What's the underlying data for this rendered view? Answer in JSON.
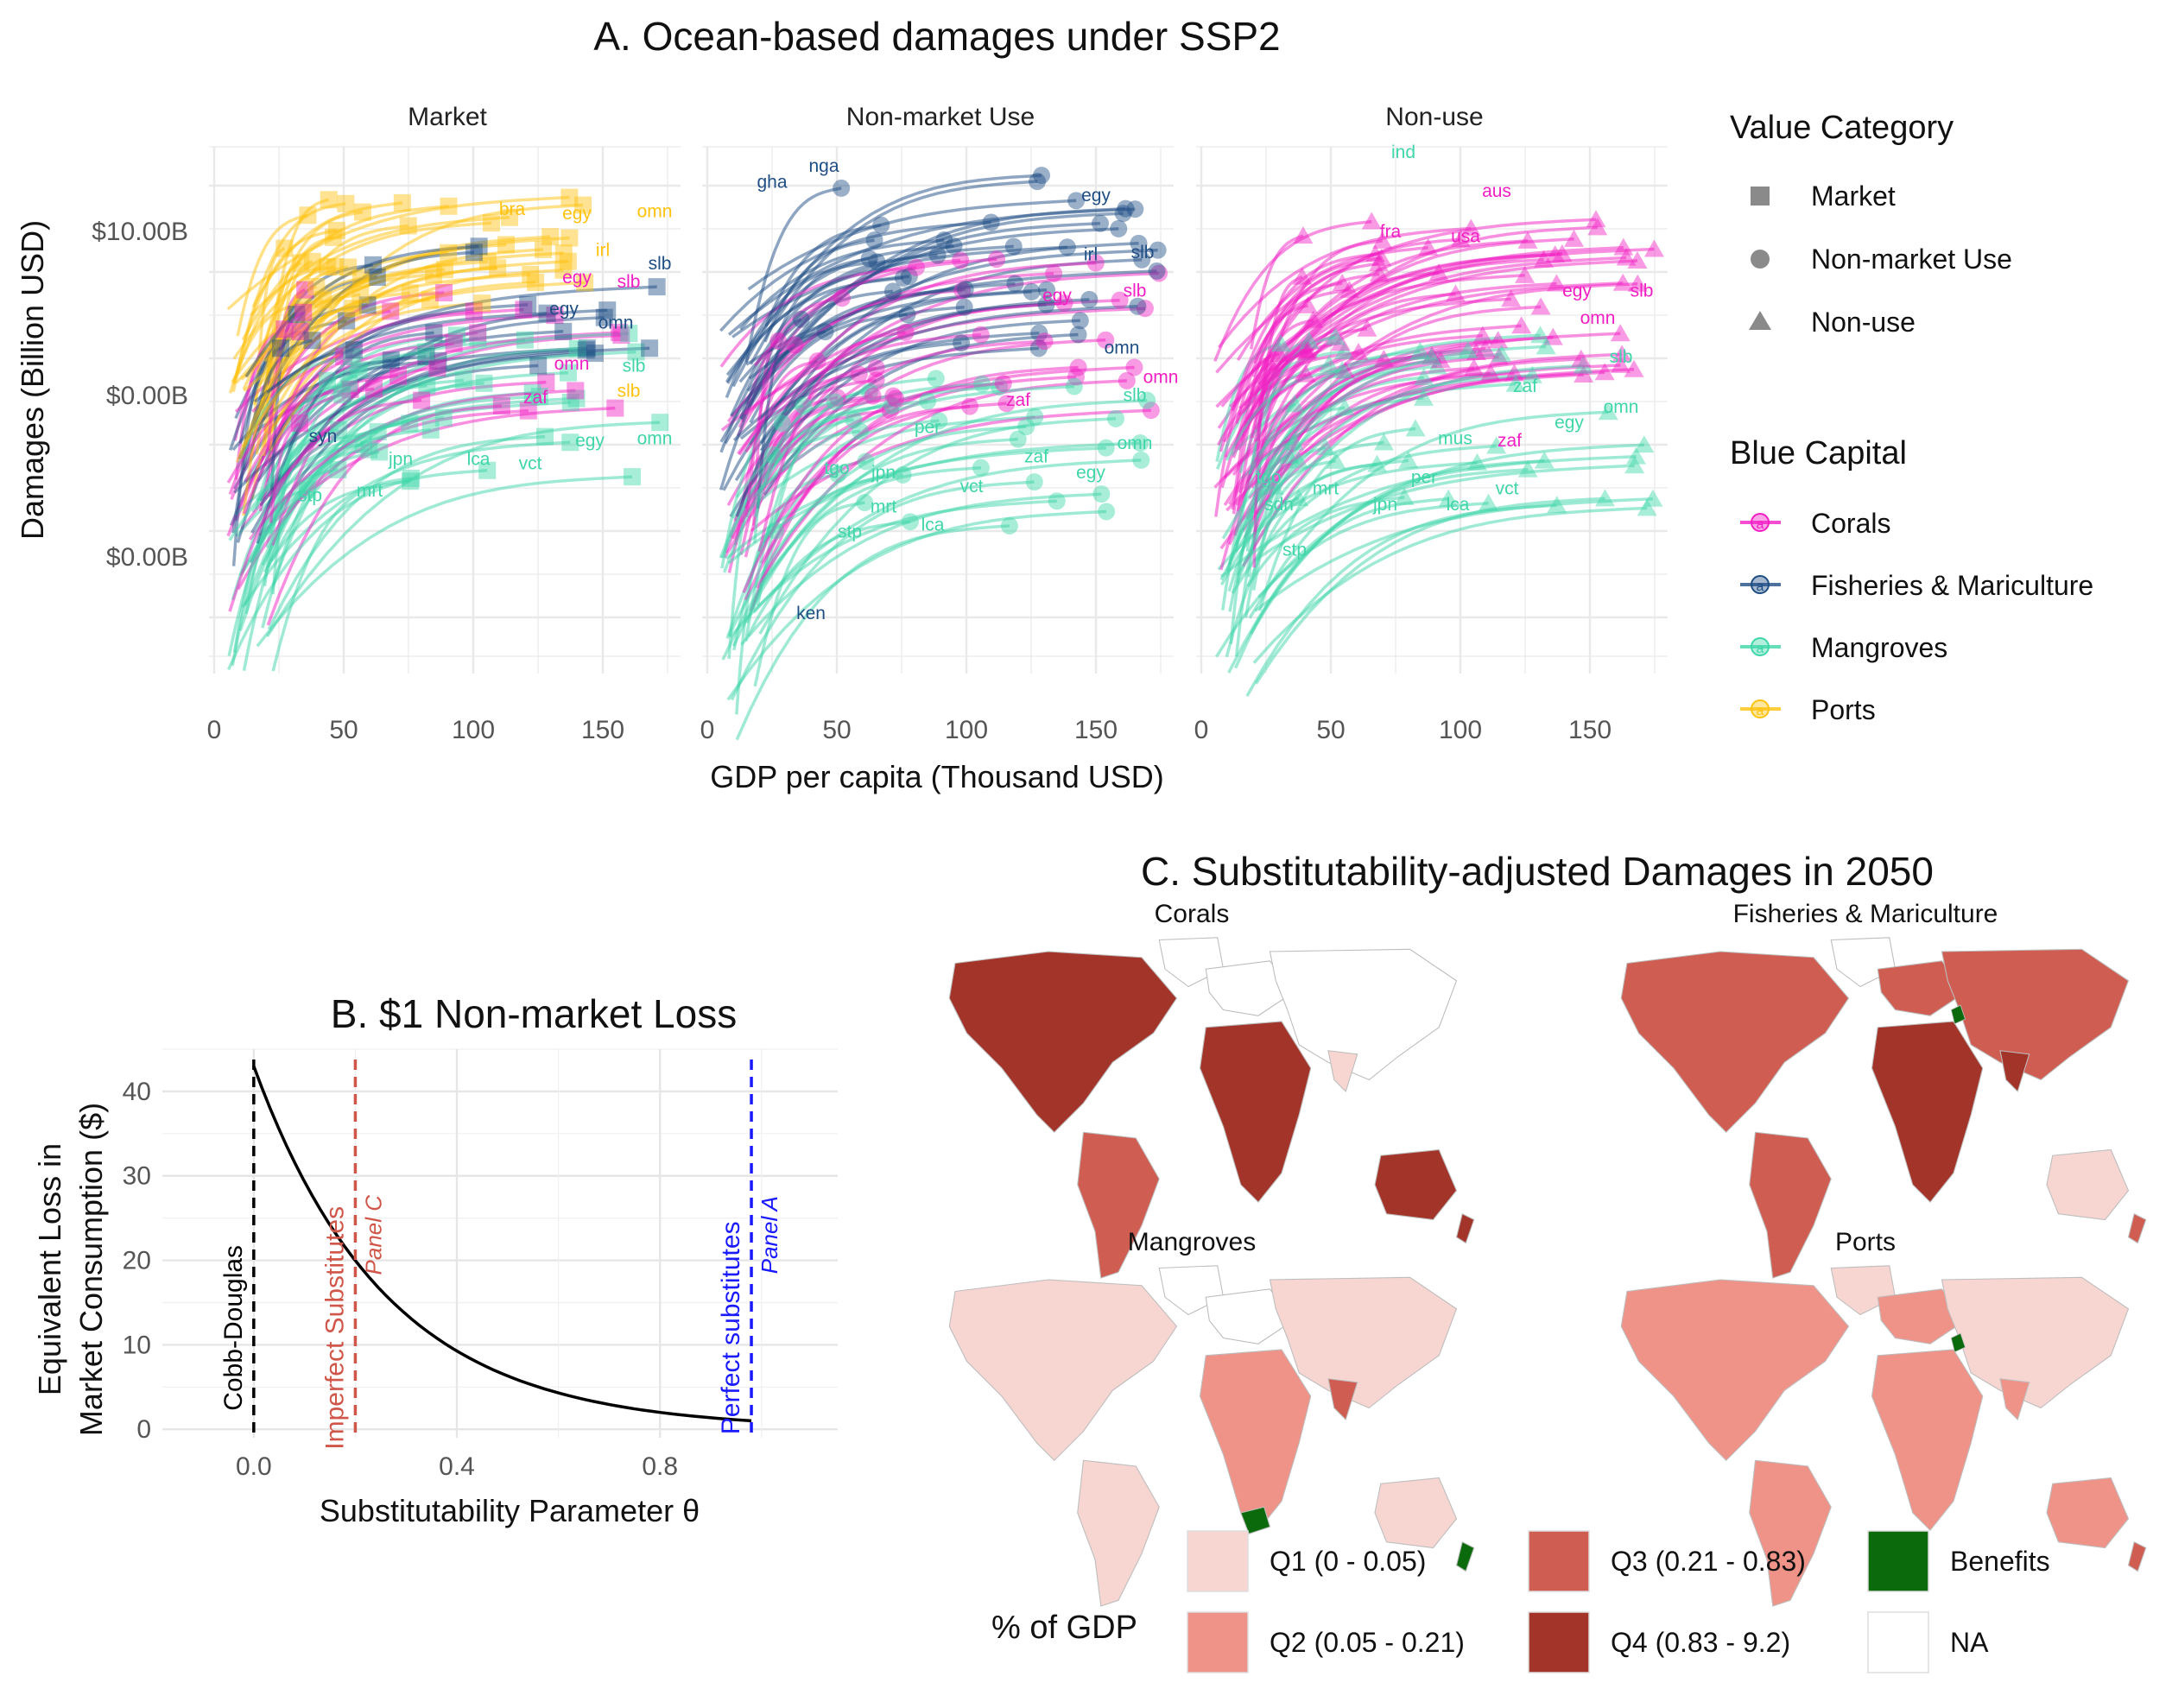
{
  "panel_a": {
    "title": "A. Ocean-based damages under SSP2",
    "facets": [
      "Market",
      "Non-market Use",
      "Non-use"
    ],
    "ylabel": "Damages (Billion USD)",
    "xlabel": "GDP per capita (Thousand USD)",
    "yticks": [
      "$10.00B",
      "$0.00B",
      "$0.00B"
    ],
    "xticks": [
      "0",
      "50",
      "100",
      "150"
    ],
    "legend_value": {
      "title": "Value Category",
      "items": [
        {
          "label": "Market",
          "shape": "square"
        },
        {
          "label": "Non-market Use",
          "shape": "circle"
        },
        {
          "label": "Non-use",
          "shape": "triangle"
        }
      ]
    },
    "legend_capital": {
      "title": "Blue Capital",
      "items": [
        {
          "label": "Corals",
          "color": "#f21fc4"
        },
        {
          "label": "Fisheries & Mariculture",
          "color": "#1f4e85"
        },
        {
          "label": "Mangroves",
          "color": "#3fd6a9"
        },
        {
          "label": "Ports",
          "color": "#ffc20e"
        }
      ]
    },
    "country_labels": [
      {
        "facet": 0,
        "text": "bra",
        "cap": 3,
        "x": 115,
        "y": 11.0
      },
      {
        "facet": 0,
        "text": "egy",
        "cap": 3,
        "x": 140,
        "y": 10.8
      },
      {
        "facet": 0,
        "text": "omn",
        "cap": 3,
        "x": 170,
        "y": 10.9
      },
      {
        "facet": 0,
        "text": "irl",
        "cap": 3,
        "x": 150,
        "y": 9.2
      },
      {
        "facet": 0,
        "text": "slb",
        "cap": 1,
        "x": 172,
        "y": 8.6
      },
      {
        "facet": 0,
        "text": "egy",
        "cap": 0,
        "x": 140,
        "y": 8.0
      },
      {
        "facet": 0,
        "text": "slb",
        "cap": 0,
        "x": 160,
        "y": 7.8
      },
      {
        "facet": 0,
        "text": "egy",
        "cap": 1,
        "x": 135,
        "y": 6.6
      },
      {
        "facet": 0,
        "text": "omn",
        "cap": 1,
        "x": 155,
        "y": 6.0
      },
      {
        "facet": 0,
        "text": "omn",
        "cap": 0,
        "x": 138,
        "y": 4.2
      },
      {
        "facet": 0,
        "text": "slb",
        "cap": 2,
        "x": 162,
        "y": 4.1
      },
      {
        "facet": 0,
        "text": "zaf",
        "cap": 0,
        "x": 124,
        "y": 2.7
      },
      {
        "facet": 0,
        "text": "slb",
        "cap": 3,
        "x": 160,
        "y": 3.0
      },
      {
        "facet": 0,
        "text": "egy",
        "cap": 2,
        "x": 145,
        "y": 0.8
      },
      {
        "facet": 0,
        "text": "omn",
        "cap": 2,
        "x": 170,
        "y": 0.9
      },
      {
        "facet": 0,
        "text": "syn",
        "cap": 1,
        "x": 42,
        "y": 1.0
      },
      {
        "facet": 0,
        "text": "jpn",
        "cap": 2,
        "x": 72,
        "y": 0.0
      },
      {
        "facet": 0,
        "text": "lca",
        "cap": 2,
        "x": 102,
        "y": 0.0
      },
      {
        "facet": 0,
        "text": "vct",
        "cap": 2,
        "x": 122,
        "y": -0.2
      },
      {
        "facet": 0,
        "text": "stp",
        "cap": 2,
        "x": 37,
        "y": -1.6
      },
      {
        "facet": 0,
        "text": "mrt",
        "cap": 2,
        "x": 60,
        "y": -1.4
      },
      {
        "facet": 1,
        "text": "nga",
        "cap": 1,
        "x": 45,
        "y": 12.9
      },
      {
        "facet": 1,
        "text": "gha",
        "cap": 1,
        "x": 25,
        "y": 12.2
      },
      {
        "facet": 1,
        "text": "egy",
        "cap": 1,
        "x": 150,
        "y": 11.6
      },
      {
        "facet": 1,
        "text": "irl",
        "cap": 1,
        "x": 148,
        "y": 9.0
      },
      {
        "facet": 1,
        "text": "slb",
        "cap": 1,
        "x": 168,
        "y": 9.1
      },
      {
        "facet": 1,
        "text": "egy",
        "cap": 0,
        "x": 135,
        "y": 7.2
      },
      {
        "facet": 1,
        "text": "slb",
        "cap": 0,
        "x": 165,
        "y": 7.4
      },
      {
        "facet": 1,
        "text": "omn",
        "cap": 1,
        "x": 160,
        "y": 4.9
      },
      {
        "facet": 1,
        "text": "omn",
        "cap": 0,
        "x": 175,
        "y": 3.6
      },
      {
        "facet": 1,
        "text": "zaf",
        "cap": 0,
        "x": 120,
        "y": 2.6
      },
      {
        "facet": 1,
        "text": "slb",
        "cap": 2,
        "x": 165,
        "y": 2.8
      },
      {
        "facet": 1,
        "text": "per",
        "cap": 2,
        "x": 85,
        "y": 1.4
      },
      {
        "facet": 1,
        "text": "omn",
        "cap": 2,
        "x": 165,
        "y": 0.7
      },
      {
        "facet": 1,
        "text": "zaf",
        "cap": 2,
        "x": 127,
        "y": 0.1
      },
      {
        "facet": 1,
        "text": "egy",
        "cap": 2,
        "x": 148,
        "y": -0.6
      },
      {
        "facet": 1,
        "text": "tgo",
        "cap": 2,
        "x": 50,
        "y": -0.4
      },
      {
        "facet": 1,
        "text": "jpn",
        "cap": 2,
        "x": 68,
        "y": -0.6
      },
      {
        "facet": 1,
        "text": "vct",
        "cap": 2,
        "x": 102,
        "y": -1.2
      },
      {
        "facet": 1,
        "text": "mrt",
        "cap": 2,
        "x": 68,
        "y": -2.1
      },
      {
        "facet": 1,
        "text": "lca",
        "cap": 2,
        "x": 87,
        "y": -2.9
      },
      {
        "facet": 1,
        "text": "stp",
        "cap": 2,
        "x": 55,
        "y": -3.2
      },
      {
        "facet": 1,
        "text": "ken",
        "cap": 1,
        "x": 40,
        "y": -6.8
      },
      {
        "facet": 2,
        "text": "ind",
        "cap": 2,
        "x": 78,
        "y": 13.5
      },
      {
        "facet": 2,
        "text": "aus",
        "cap": 0,
        "x": 114,
        "y": 11.8
      },
      {
        "facet": 2,
        "text": "fra",
        "cap": 0,
        "x": 73,
        "y": 10.0
      },
      {
        "facet": 2,
        "text": "usa",
        "cap": 0,
        "x": 102,
        "y": 9.8
      },
      {
        "facet": 2,
        "text": "egy",
        "cap": 0,
        "x": 145,
        "y": 7.4
      },
      {
        "facet": 2,
        "text": "slb",
        "cap": 0,
        "x": 170,
        "y": 7.4
      },
      {
        "facet": 2,
        "text": "omn",
        "cap": 0,
        "x": 153,
        "y": 6.2
      },
      {
        "facet": 2,
        "text": "slb",
        "cap": 2,
        "x": 162,
        "y": 4.5
      },
      {
        "facet": 2,
        "text": "zaf",
        "cap": 2,
        "x": 125,
        "y": 3.2
      },
      {
        "facet": 2,
        "text": "omn",
        "cap": 2,
        "x": 162,
        "y": 2.3
      },
      {
        "facet": 2,
        "text": "egy",
        "cap": 2,
        "x": 142,
        "y": 1.6
      },
      {
        "facet": 2,
        "text": "mus",
        "cap": 2,
        "x": 98,
        "y": 0.9
      },
      {
        "facet": 2,
        "text": "zaf",
        "cap": 0,
        "x": 119,
        "y": 0.8
      },
      {
        "facet": 2,
        "text": "tgo",
        "cap": 2,
        "x": 26,
        "y": -0.8
      },
      {
        "facet": 2,
        "text": "per",
        "cap": 2,
        "x": 86,
        "y": -0.8
      },
      {
        "facet": 2,
        "text": "vct",
        "cap": 2,
        "x": 118,
        "y": -1.3
      },
      {
        "facet": 2,
        "text": "mrt",
        "cap": 2,
        "x": 48,
        "y": -1.3
      },
      {
        "facet": 2,
        "text": "sdn",
        "cap": 2,
        "x": 30,
        "y": -2.0
      },
      {
        "facet": 2,
        "text": "jpn",
        "cap": 2,
        "x": 71,
        "y": -2.0
      },
      {
        "facet": 2,
        "text": "lca",
        "cap": 2,
        "x": 99,
        "y": -2.0
      },
      {
        "facet": 2,
        "text": "stp",
        "cap": 2,
        "x": 36,
        "y": -4.0
      }
    ]
  },
  "panel_b": {
    "title": "B. $1 Non-market Loss",
    "ylabel_line1": "Equivalent Loss in",
    "ylabel_line2": "Market Consumption ($)",
    "xlabel": "Substitutability Parameter θ",
    "xticks": [
      "0.0",
      "0.4",
      "0.8"
    ],
    "yticks": [
      "0",
      "10",
      "20",
      "30",
      "40"
    ],
    "vlines": [
      {
        "x": 0.0,
        "label": "Cobb-Douglas",
        "sublabel": "",
        "color": "#000000"
      },
      {
        "x": 0.2,
        "label": "Imperfect Substitutes",
        "sublabel": "Panel C",
        "color": "#d0564a"
      },
      {
        "x": 0.98,
        "label": "Perfect substitutes",
        "sublabel": "Panel A",
        "color": "#1a1aff"
      }
    ]
  },
  "panel_c": {
    "title": "C. Substitutability-adjusted Damages in 2050",
    "maps": [
      "Corals",
      "Fisheries & Mariculture",
      "Mangroves",
      "Ports"
    ],
    "legend_title": "% of GDP",
    "legend_items": [
      {
        "label": "Q1 (0 - 0.05)",
        "color": "#f7d6d2"
      },
      {
        "label": "Q2 (0.05 - 0.21)",
        "color": "#ef9388"
      },
      {
        "label": "Q3 (0.21 - 0.83)",
        "color": "#cf5d52"
      },
      {
        "label": "Q4 (0.83 - 9.2)",
        "color": "#a3342a"
      },
      {
        "label": "Benefits",
        "color": "#0b6a0b"
      },
      {
        "label": "NA",
        "color": "#ffffff"
      }
    ]
  },
  "chart_data": [
    {
      "type": "scatter",
      "title": "A. Ocean-based damages under SSP2",
      "facets": [
        "Market",
        "Non-market Use",
        "Non-use"
      ],
      "xlabel": "GDP per capita (Thousand USD)",
      "ylabel": "Damages (Billion USD)",
      "xlim": [
        0,
        180
      ],
      "ylim": [
        -9,
        14
      ],
      "series": [
        {
          "name": "Corals",
          "color": "#f21fc4"
        },
        {
          "name": "Fisheries & Mariculture",
          "color": "#1f4e85"
        },
        {
          "name": "Mangroves",
          "color": "#3fd6a9"
        },
        {
          "name": "Ports",
          "color": "#ffc20e"
        }
      ],
      "points": [
        {
          "facet": 0,
          "cap": 3,
          "x": 115,
          "y": 11.0
        },
        {
          "facet": 0,
          "cap": 3,
          "x": 140,
          "y": 10.8
        },
        {
          "facet": 0,
          "cap": 3,
          "x": 170,
          "y": 10.9
        },
        {
          "facet": 0,
          "cap": 1,
          "x": 172,
          "y": 8.6
        },
        {
          "facet": 1,
          "cap": 1,
          "x": 45,
          "y": 12.9
        },
        {
          "facet": 1,
          "cap": 1,
          "x": 150,
          "y": 11.6
        },
        {
          "facet": 1,
          "cap": 1,
          "x": 40,
          "y": -6.8
        },
        {
          "facet": 2,
          "cap": 2,
          "x": 78,
          "y": 13.5
        },
        {
          "facet": 2,
          "cap": 0,
          "x": 114,
          "y": 11.8
        },
        {
          "facet": 2,
          "cap": 2,
          "x": 36,
          "y": -4.0
        }
      ]
    },
    {
      "type": "line",
      "title": "B. $1 Non-market Loss",
      "xlabel": "Substitutability Parameter θ",
      "ylabel": "Equivalent Loss in Market Consumption ($)",
      "xlim": [
        -0.18,
        1.15
      ],
      "ylim": [
        -1,
        45
      ],
      "x": [
        0.0,
        0.1,
        0.2,
        0.3,
        0.4,
        0.5,
        0.6,
        0.7,
        0.8,
        0.9,
        0.98
      ],
      "series": [
        {
          "values": [
            43,
            28.5,
            19.1,
            12.8,
            8.6,
            5.8,
            4.0,
            2.7,
            1.9,
            1.3,
            1.0
          ]
        }
      ]
    },
    {
      "type": "heatmap",
      "title": "C. Substitutability-adjusted Damages in 2050",
      "legend_title": "% of GDP",
      "categories": [
        "Q1 (0 - 0.05)",
        "Q2 (0.05 - 0.21)",
        "Q3 (0.21 - 0.83)",
        "Q4 (0.83 - 9.2)",
        "Benefits",
        "NA"
      ]
    }
  ]
}
